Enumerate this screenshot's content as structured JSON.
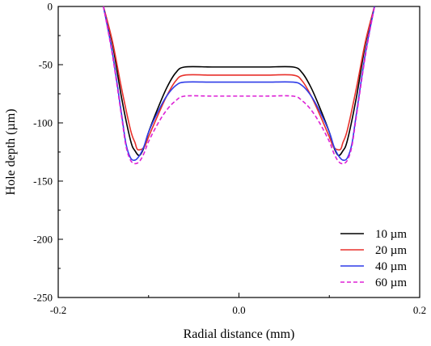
{
  "chart_data": {
    "type": "line",
    "title": "",
    "xlabel": "Radial distance (mm)",
    "ylabel": "Hole depth (µm)",
    "xlim": [
      -0.2,
      0.2
    ],
    "ylim": [
      -250,
      0
    ],
    "grid": false,
    "legend_position": "bottom-right",
    "x_ticks": [
      -0.2,
      0.0,
      0.2
    ],
    "x_tick_labels": [
      "-0.2",
      "0.0",
      "0.2"
    ],
    "y_ticks": [
      0,
      -50,
      -100,
      -150,
      -200,
      -250
    ],
    "y_tick_labels": [
      "0",
      "-50",
      "-100",
      "-150",
      "-200",
      "-250"
    ],
    "series": [
      {
        "name": "10 µm",
        "color": "#000000",
        "dash": "solid",
        "points": [
          [
            -0.15,
            0
          ],
          [
            -0.14,
            -32
          ],
          [
            -0.13,
            -78
          ],
          [
            -0.12,
            -115
          ],
          [
            -0.115,
            -124
          ],
          [
            -0.11,
            -128
          ],
          [
            -0.105,
            -121
          ],
          [
            -0.1,
            -108
          ],
          [
            -0.09,
            -88
          ],
          [
            -0.08,
            -70
          ],
          [
            -0.07,
            -57
          ],
          [
            -0.06,
            -52
          ],
          [
            -0.03,
            -52
          ],
          [
            0.0,
            -52
          ],
          [
            0.03,
            -52
          ],
          [
            0.06,
            -52
          ],
          [
            0.07,
            -57
          ],
          [
            0.08,
            -70
          ],
          [
            0.09,
            -88
          ],
          [
            0.1,
            -108
          ],
          [
            0.105,
            -121
          ],
          [
            0.11,
            -128
          ],
          [
            0.115,
            -124
          ],
          [
            0.12,
            -115
          ],
          [
            0.13,
            -78
          ],
          [
            0.14,
            -32
          ],
          [
            0.15,
            0
          ]
        ]
      },
      {
        "name": "20 µm",
        "color": "#e8312b",
        "dash": "solid",
        "points": [
          [
            -0.15,
            0
          ],
          [
            -0.14,
            -30
          ],
          [
            -0.13,
            -70
          ],
          [
            -0.12,
            -106
          ],
          [
            -0.115,
            -117
          ],
          [
            -0.112,
            -123
          ],
          [
            -0.105,
            -121
          ],
          [
            -0.1,
            -112
          ],
          [
            -0.09,
            -94
          ],
          [
            -0.08,
            -77
          ],
          [
            -0.07,
            -64
          ],
          [
            -0.06,
            -59
          ],
          [
            -0.03,
            -59
          ],
          [
            0.0,
            -59
          ],
          [
            0.03,
            -59
          ],
          [
            0.06,
            -59
          ],
          [
            0.07,
            -64
          ],
          [
            0.08,
            -77
          ],
          [
            0.09,
            -94
          ],
          [
            0.1,
            -112
          ],
          [
            0.105,
            -121
          ],
          [
            0.112,
            -123
          ],
          [
            0.115,
            -117
          ],
          [
            0.12,
            -106
          ],
          [
            0.13,
            -70
          ],
          [
            0.14,
            -30
          ],
          [
            0.15,
            0
          ]
        ]
      },
      {
        "name": "40 µm",
        "color": "#2f3ce8",
        "dash": "solid",
        "points": [
          [
            -0.15,
            0
          ],
          [
            -0.14,
            -40
          ],
          [
            -0.13,
            -92
          ],
          [
            -0.125,
            -118
          ],
          [
            -0.12,
            -130
          ],
          [
            -0.115,
            -132
          ],
          [
            -0.11,
            -128
          ],
          [
            -0.105,
            -120
          ],
          [
            -0.1,
            -108
          ],
          [
            -0.09,
            -91
          ],
          [
            -0.08,
            -77
          ],
          [
            -0.07,
            -68
          ],
          [
            -0.06,
            -65
          ],
          [
            -0.03,
            -65
          ],
          [
            0.0,
            -65
          ],
          [
            0.03,
            -65
          ],
          [
            0.06,
            -65
          ],
          [
            0.07,
            -68
          ],
          [
            0.08,
            -77
          ],
          [
            0.09,
            -91
          ],
          [
            0.1,
            -108
          ],
          [
            0.105,
            -120
          ],
          [
            0.11,
            -128
          ],
          [
            0.115,
            -132
          ],
          [
            0.12,
            -130
          ],
          [
            0.125,
            -118
          ],
          [
            0.13,
            -92
          ],
          [
            0.14,
            -40
          ],
          [
            0.15,
            0
          ]
        ]
      },
      {
        "name": "60 µm",
        "color": "#dd22d6",
        "dash": "dashed",
        "points": [
          [
            -0.15,
            0
          ],
          [
            -0.14,
            -42
          ],
          [
            -0.13,
            -94
          ],
          [
            -0.125,
            -120
          ],
          [
            -0.12,
            -132
          ],
          [
            -0.115,
            -135
          ],
          [
            -0.11,
            -133
          ],
          [
            -0.105,
            -126
          ],
          [
            -0.1,
            -116
          ],
          [
            -0.09,
            -101
          ],
          [
            -0.08,
            -89
          ],
          [
            -0.07,
            -81
          ],
          [
            -0.06,
            -77
          ],
          [
            -0.03,
            -77
          ],
          [
            0.0,
            -77
          ],
          [
            0.03,
            -77
          ],
          [
            0.06,
            -77
          ],
          [
            0.07,
            -81
          ],
          [
            0.08,
            -89
          ],
          [
            0.09,
            -101
          ],
          [
            0.1,
            -116
          ],
          [
            0.105,
            -126
          ],
          [
            0.11,
            -133
          ],
          [
            0.115,
            -135
          ],
          [
            0.12,
            -132
          ],
          [
            0.125,
            -120
          ],
          [
            0.13,
            -94
          ],
          [
            0.14,
            -42
          ],
          [
            0.15,
            0
          ]
        ]
      }
    ]
  }
}
